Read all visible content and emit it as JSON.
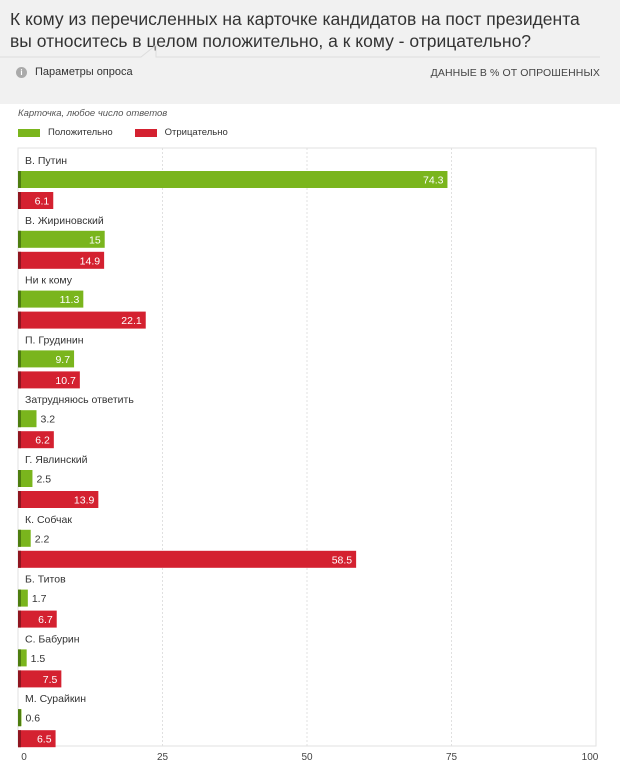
{
  "question": "К кому из перечисленных на карточке кандидатов на пост президента вы относитесь в целом положительно, а к кому - отрицательно?",
  "params_label": "Параметры опроса",
  "info_icon_label": "i",
  "units_label": "ДАННЫЕ В % ОТ ОПРОШЕННЫХ",
  "icons": {
    "info": "info-circle-icon"
  },
  "colors": {
    "positive": "#7ab51d",
    "negative": "#d42130",
    "header_bg": "#f1f1f1"
  },
  "chart_data": {
    "type": "bar",
    "orientation": "horizontal",
    "subtitle": "Карточка, любое число ответов",
    "categories": [
      "В. Путин",
      "В. Жириновский",
      "Ни к кому",
      "П. Грудинин",
      "Затрудняюсь ответить",
      "Г. Явлинский",
      "К. Собчак",
      "Б. Титов",
      "С. Бабурин",
      "М. Сурайкин"
    ],
    "series": [
      {
        "name": "Положительно",
        "color": "#7ab51d",
        "values": [
          74.3,
          15,
          11.3,
          9.7,
          3.2,
          2.5,
          2.2,
          1.7,
          1.5,
          0.6
        ]
      },
      {
        "name": "Отрицательно",
        "color": "#d42130",
        "values": [
          6.1,
          14.9,
          22.1,
          10.7,
          6.2,
          13.9,
          58.5,
          6.7,
          7.5,
          6.5
        ]
      }
    ],
    "xlim": [
      0,
      100
    ],
    "xticks": [
      0,
      25,
      50,
      75,
      100
    ],
    "grid": true,
    "legend_position": "top-left"
  }
}
